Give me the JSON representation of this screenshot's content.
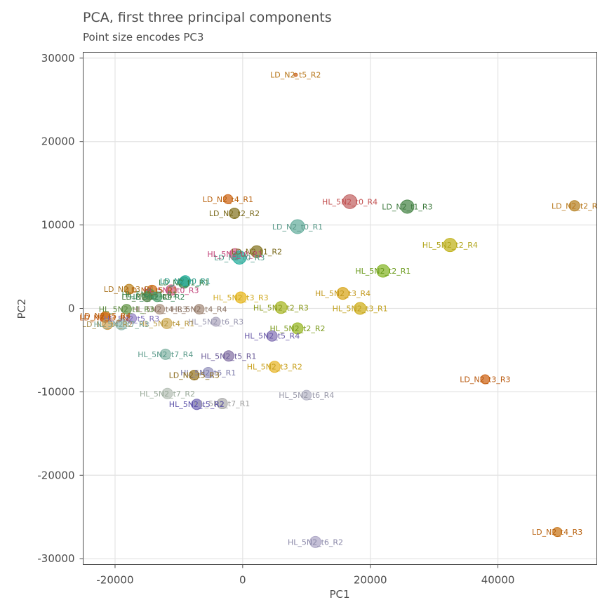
{
  "chart_data": {
    "type": "scatter",
    "title": "PCA, first three principal components",
    "subtitle": "Point size encodes PC3",
    "xlabel": "PC1",
    "ylabel": "PC2",
    "xlim": [
      -25000,
      55500
    ],
    "ylim": [
      -30700,
      30700
    ],
    "x_ticks": [
      -20000,
      0,
      20000,
      40000
    ],
    "x_tick_labels": [
      "-20000",
      "0",
      "20000",
      "40000"
    ],
    "y_ticks": [
      -30000,
      -20000,
      -10000,
      0,
      10000,
      20000,
      30000
    ],
    "y_tick_labels": [
      "-30000",
      "-20000",
      "-10000",
      "0",
      "10000",
      "20000",
      "30000"
    ],
    "grid": true,
    "legend": "none",
    "colors": {
      "LD_N2": "#c9651c",
      "LD_N2_olive": "#8a7a2a",
      "LD_N2_green": "#4e9a4e",
      "HL_5N2_t0": "#c24e4e",
      "LD_N2_t0": "#5eb0a0",
      "HL_5N2_t2": "#8ab82f",
      "HL_5N2_t3": "#d9b01f",
      "HL_5N2_t4": "#a08872",
      "HL_5N2_t5": "#8878c0",
      "HL_5N2_t6": "#9a98b8",
      "HL_5N2_t7": "#9ab8aa"
    },
    "points": [
      {
        "label": "LD_N2_t5_R2",
        "x": 8300,
        "y": 28000,
        "pc3": 0.05,
        "color": "#c9651c",
        "label_color": "#b8781c"
      },
      {
        "label": "LD_N2_t2_R",
        "x": 52000,
        "y": 12300,
        "pc3": 0.55,
        "color": "#b8862a",
        "label_color": "#b8781c"
      },
      {
        "label": "LD_N2_t4_R1",
        "x": -2300,
        "y": 13100,
        "pc3": 0.45,
        "color": "#d06a1c",
        "label_color": "#b8600c"
      },
      {
        "label": "LD_N2_t2_R2",
        "x": -1300,
        "y": 11400,
        "pc3": 0.55,
        "color": "#8a7a2a",
        "label_color": "#7a6a1c"
      },
      {
        "label": "HL_5N2_t0_R4",
        "x": 16800,
        "y": 12800,
        "pc3": 0.8,
        "color": "#c46a6a",
        "label_color": "#c24e4e"
      },
      {
        "label": "LD_N2_t1_R3",
        "x": 25800,
        "y": 12200,
        "pc3": 0.75,
        "color": "#4e8a4e",
        "label_color": "#3e7a3e"
      },
      {
        "label": "LD_N2_t0_R1",
        "x": 8600,
        "y": 9800,
        "pc3": 0.8,
        "color": "#6ab0a0",
        "label_color": "#5a9a8a"
      },
      {
        "label": "HL_5N2_t2_R4",
        "x": 32500,
        "y": 7600,
        "pc3": 0.75,
        "color": "#c2b420",
        "label_color": "#b0a418"
      },
      {
        "label": "HL_5N2_t0_R1",
        "x": -1200,
        "y": 6500,
        "pc3": 0.6,
        "color": "#d06a8a",
        "label_color": "#c2447a"
      },
      {
        "label": "LD_N2_t1_R2",
        "x": 2200,
        "y": 6800,
        "pc3": 0.65,
        "color": "#8a7a2a",
        "label_color": "#7a6a1c"
      },
      {
        "label": "LD_N2_t0_R3",
        "x": -500,
        "y": 6100,
        "pc3": 0.75,
        "color": "#2ab0a0",
        "label_color": "#4e9a8a"
      },
      {
        "label": "HL_5N2_t2_R1",
        "x": 22000,
        "y": 4500,
        "pc3": 0.7,
        "color": "#8ab82f",
        "label_color": "#6a9a1c"
      },
      {
        "label": "HL_5N2_t3_R4",
        "x": 15700,
        "y": 1800,
        "pc3": 0.65,
        "color": "#d9a820",
        "label_color": "#c2981c"
      },
      {
        "label": "HL_5N2_t3_R3",
        "x": -300,
        "y": 1300,
        "pc3": 0.6,
        "color": "#e8b820",
        "label_color": "#d0a81c"
      },
      {
        "label": "HL_5N2_t2_R3",
        "x": 6000,
        "y": 100,
        "pc3": 0.65,
        "color": "#aab82a",
        "label_color": "#8a9a1c"
      },
      {
        "label": "HL_5N2_t3_R1",
        "x": 18400,
        "y": 0,
        "pc3": 0.65,
        "color": "#d0b020",
        "label_color": "#c0a01c"
      },
      {
        "label": "HL_5N2_t2_R2",
        "x": 8600,
        "y": -2400,
        "pc3": 0.6,
        "color": "#9ab82a",
        "label_color": "#7a9a1c"
      },
      {
        "label": "HL_5N2_t5_R4",
        "x": 4600,
        "y": -3300,
        "pc3": 0.55,
        "color": "#8a7ab8",
        "label_color": "#6a5aa8"
      },
      {
        "label": "HL_5N2_t5_R1",
        "x": -2200,
        "y": -5700,
        "pc3": 0.55,
        "color": "#8a78a8",
        "label_color": "#6a5a98"
      },
      {
        "label": "HL_5N2_t3_R2",
        "x": 5000,
        "y": -7000,
        "pc3": 0.6,
        "color": "#e8b830",
        "label_color": "#c8a01c"
      },
      {
        "label": "LD_N2_t3_R3",
        "x": 38000,
        "y": -8500,
        "pc3": 0.45,
        "color": "#d0681c",
        "label_color": "#b8580c"
      },
      {
        "label": "HL_5N2_t6_R4",
        "x": 10000,
        "y": -10400,
        "pc3": 0.5,
        "color": "#b8b8c8",
        "label_color": "#9a9aaa"
      },
      {
        "label": "HL_5N2_t7_R1",
        "x": -3200,
        "y": -11400,
        "pc3": 0.55,
        "color": "#b0b0b0",
        "label_color": "#a0a0a0"
      },
      {
        "label": "HL_5N2_t5_R2",
        "x": -7200,
        "y": -11500,
        "pc3": 0.55,
        "color": "#7a70b8",
        "label_color": "#5a50a8"
      },
      {
        "label": "HL_5N2_t7_R2",
        "x": -11800,
        "y": -10200,
        "pc3": 0.55,
        "color": "#b8c2b8",
        "label_color": "#9aaa9a"
      },
      {
        "label": "HL_5N2_t6_R1",
        "x": -5400,
        "y": -7700,
        "pc3": 0.55,
        "color": "#9a98c0",
        "label_color": "#7a78a8"
      },
      {
        "label": "LD_N2_t5_R3",
        "x": -7600,
        "y": -8000,
        "pc3": 0.5,
        "color": "#9a7a2a",
        "label_color": "#8a6a1c"
      },
      {
        "label": "HL_5N2_t7_R4",
        "x": -12100,
        "y": -5500,
        "pc3": 0.55,
        "color": "#8ab8aa",
        "label_color": "#5a9a8a"
      },
      {
        "label": "HL_5N2_t6_R2",
        "x": 11400,
        "y": -28000,
        "pc3": 0.6,
        "color": "#b0aac8",
        "label_color": "#8a88a8"
      },
      {
        "label": "LD_N2_t4_R3",
        "x": 49300,
        "y": -26800,
        "pc3": 0.45,
        "color": "#c9781c",
        "label_color": "#b8600c"
      },
      {
        "label": "HL_5N2_t6_R3",
        "x": -4200,
        "y": -1600,
        "pc3": 0.45,
        "color": "#b0aac0",
        "label_color": "#9a98b0"
      },
      {
        "label": "HL_5N2_t4_R4",
        "x": -6800,
        "y": -100,
        "pc3": 0.5,
        "color": "#a89080",
        "label_color": "#8a7060"
      },
      {
        "label": "HL_5N2_t4_R3",
        "x": -13000,
        "y": -100,
        "pc3": 0.5,
        "color": "#b09888",
        "label_color": "#8a7060"
      },
      {
        "label": "HL_5N2_t4_R1",
        "x": -11900,
        "y": -1800,
        "pc3": 0.55,
        "color": "#d0b060",
        "label_color": "#b89840"
      },
      {
        "label": "HL_5N2_t1_R3",
        "x": -18200,
        "y": -100,
        "pc3": 0.5,
        "color": "#6a9a4e",
        "label_color": "#5a8a3e"
      },
      {
        "label": "HL_5N2_t5_R3",
        "x": -17400,
        "y": -1200,
        "pc3": 0.5,
        "color": "#9a88c8",
        "label_color": "#7a68b8"
      },
      {
        "label": "LD_N2_t1_R1",
        "x": -9200,
        "y": 3100,
        "pc3": 0.6,
        "color": "#3e8a4e",
        "label_color": "#2e7a3e"
      },
      {
        "label": "LD_N2_t0_R1",
        "x": -9000,
        "y": 3300,
        "pc3": 0.55,
        "color": "#2ab0a0",
        "label_color": "#2a9a8a"
      },
      {
        "label": "LD_N2_t3_R1",
        "x": -17800,
        "y": 2300,
        "pc3": 0.5,
        "color": "#c08a2a",
        "label_color": "#a8701c"
      },
      {
        "label": "HL_5N2_t0_R3",
        "x": -11200,
        "y": 2200,
        "pc3": 0.55,
        "color": "#d06a8a",
        "label_color": "#c2447a"
      },
      {
        "label": "LD_N2_t5_R1",
        "x": -14200,
        "y": 2200,
        "pc3": 0.5,
        "color": "#d0701c",
        "label_color": "#b8600c"
      },
      {
        "label": "HL_5N2_t1_R1",
        "x": -14600,
        "y": 1700,
        "pc3": 0.55,
        "color": "#4e9a5e",
        "label_color": "#3e8a4e"
      },
      {
        "label": "LD_N2_t1_R4",
        "x": -15000,
        "y": 1400,
        "pc3": 0.5,
        "color": "#5a8a4e",
        "label_color": "#4a7a3e"
      },
      {
        "label": "HL_5N2_t1_R2",
        "x": -13400,
        "y": 1400,
        "pc3": 0.5,
        "color": "#4ea06e",
        "label_color": "#3e8a5e"
      },
      {
        "label": "LD_N2_t3_R2",
        "x": -21600,
        "y": -1100,
        "pc3": 0.5,
        "color": "#d0601c",
        "label_color": "#c0500c"
      },
      {
        "label": "LD_N2_t5_R4",
        "x": -21500,
        "y": -900,
        "pc3": 0.45,
        "color": "#d0781c",
        "label_color": "#b8600c"
      },
      {
        "label": "LD_N2_t4_R2",
        "x": -21200,
        "y": -1900,
        "pc3": 0.55,
        "color": "#d0a860",
        "label_color": "#a89050"
      },
      {
        "label": "HL_5N2_t7_R3",
        "x": -19000,
        "y": -1900,
        "pc3": 0.6,
        "color": "#9ac0b8",
        "label_color": "#7aa89a"
      }
    ]
  }
}
